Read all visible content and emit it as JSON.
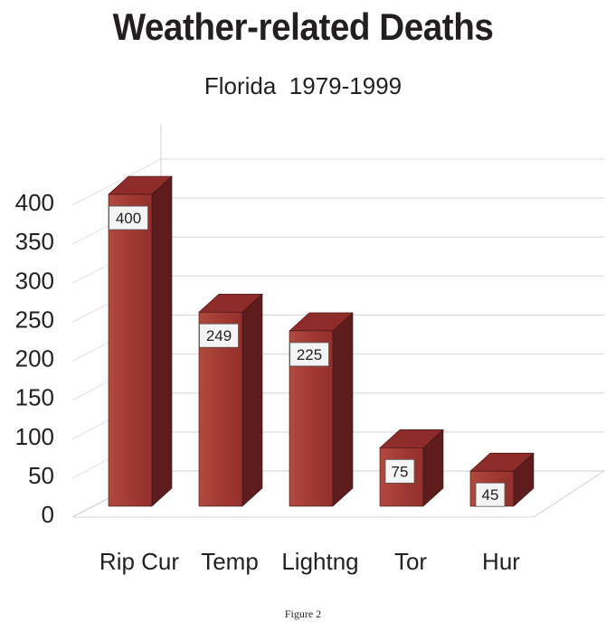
{
  "chart_data": {
    "type": "bar",
    "title": "Weather-related Deaths",
    "subtitle": "Florida  1979-1999",
    "categories": [
      "Rip Cur",
      "Temp",
      "Lightng",
      "Tor",
      "Hur"
    ],
    "values": [
      400,
      249,
      225,
      75,
      45
    ],
    "data_labels": [
      "400",
      "249",
      "225",
      "75",
      "45"
    ],
    "y_ticks": [
      "0",
      "50",
      "100",
      "150",
      "200",
      "250",
      "300",
      "350",
      "400"
    ],
    "ylim": [
      0,
      400
    ],
    "xlabel": "",
    "ylabel": "",
    "grid": true,
    "three_d": true,
    "colors": {
      "bar_front": "#a23a33",
      "bar_side": "#5e1d1c",
      "bar_top": "#8d2c29",
      "label_box": "#f4f4f4"
    }
  },
  "caption": "Figure 2"
}
